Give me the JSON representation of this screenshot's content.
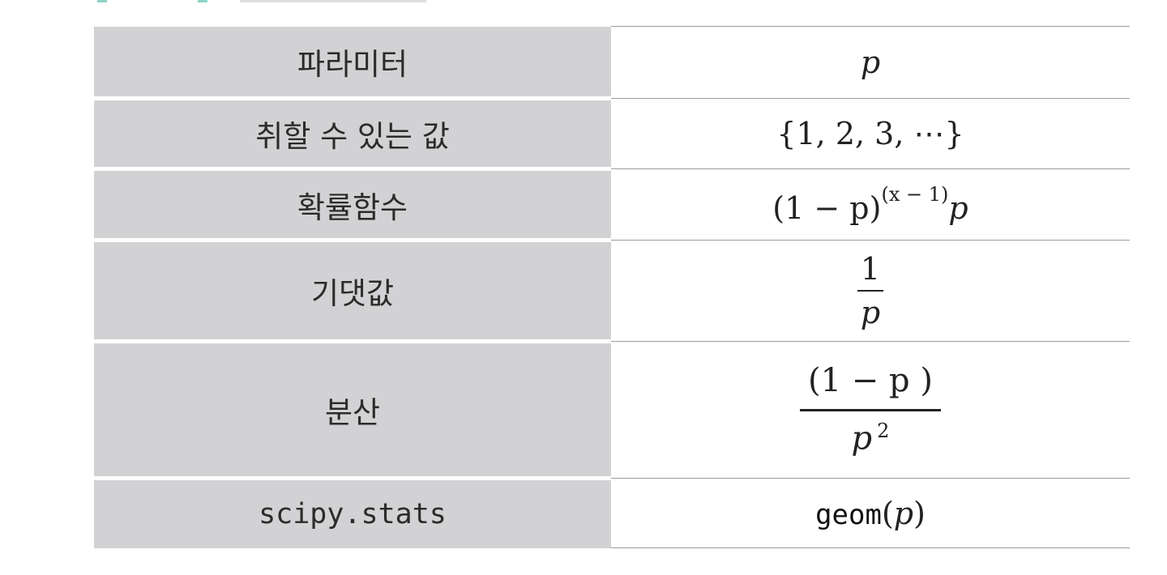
{
  "rows": [
    {
      "label": "파라미터",
      "value": "p"
    },
    {
      "label": "취할 수 있는 값",
      "value": "{1, 2, 3, ⋯}"
    },
    {
      "label": "확률함수",
      "value_base": "(1 − p)",
      "value_exp": "(x − 1)",
      "value_tail": "p"
    },
    {
      "label": "기댓값",
      "value_num": "1",
      "value_den": "p"
    },
    {
      "label": "분산",
      "value_num": "(1 −  p )",
      "value_den": "p",
      "value_den_exp": "2"
    },
    {
      "label": "scipy.stats",
      "value_code": "geom",
      "value_arg_open": "(",
      "value_arg": "p",
      "value_arg_close": ")"
    }
  ]
}
